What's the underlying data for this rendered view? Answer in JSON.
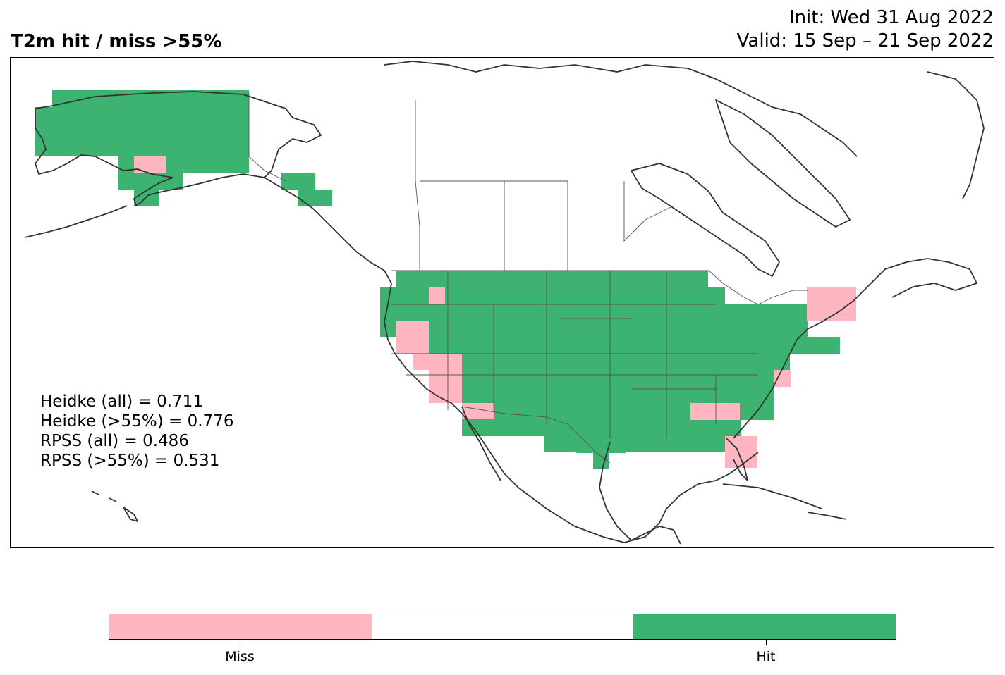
{
  "header": {
    "title": "T2m hit / miss  >55%",
    "init": "Init: Wed 31 Aug 2022",
    "valid": "Valid: 15 Sep – 21 Sep 2022"
  },
  "stats": [
    "Heidke (all) = 0.711",
    "Heidke (>55%) = 0.776",
    "RPSS (all) = 0.486",
    "RPSS (>55%) = 0.531"
  ],
  "colors": {
    "hit": "#3cb371",
    "miss": "#ffb6c1",
    "neutral": "#ffffff",
    "coastline": "#333333",
    "border": "#555555"
  },
  "colorbar": {
    "miss_label": "Miss",
    "hit_label": "Hit"
  },
  "map": {
    "region": "North America",
    "categories": [
      "miss",
      "neutral",
      "hit"
    ]
  }
}
